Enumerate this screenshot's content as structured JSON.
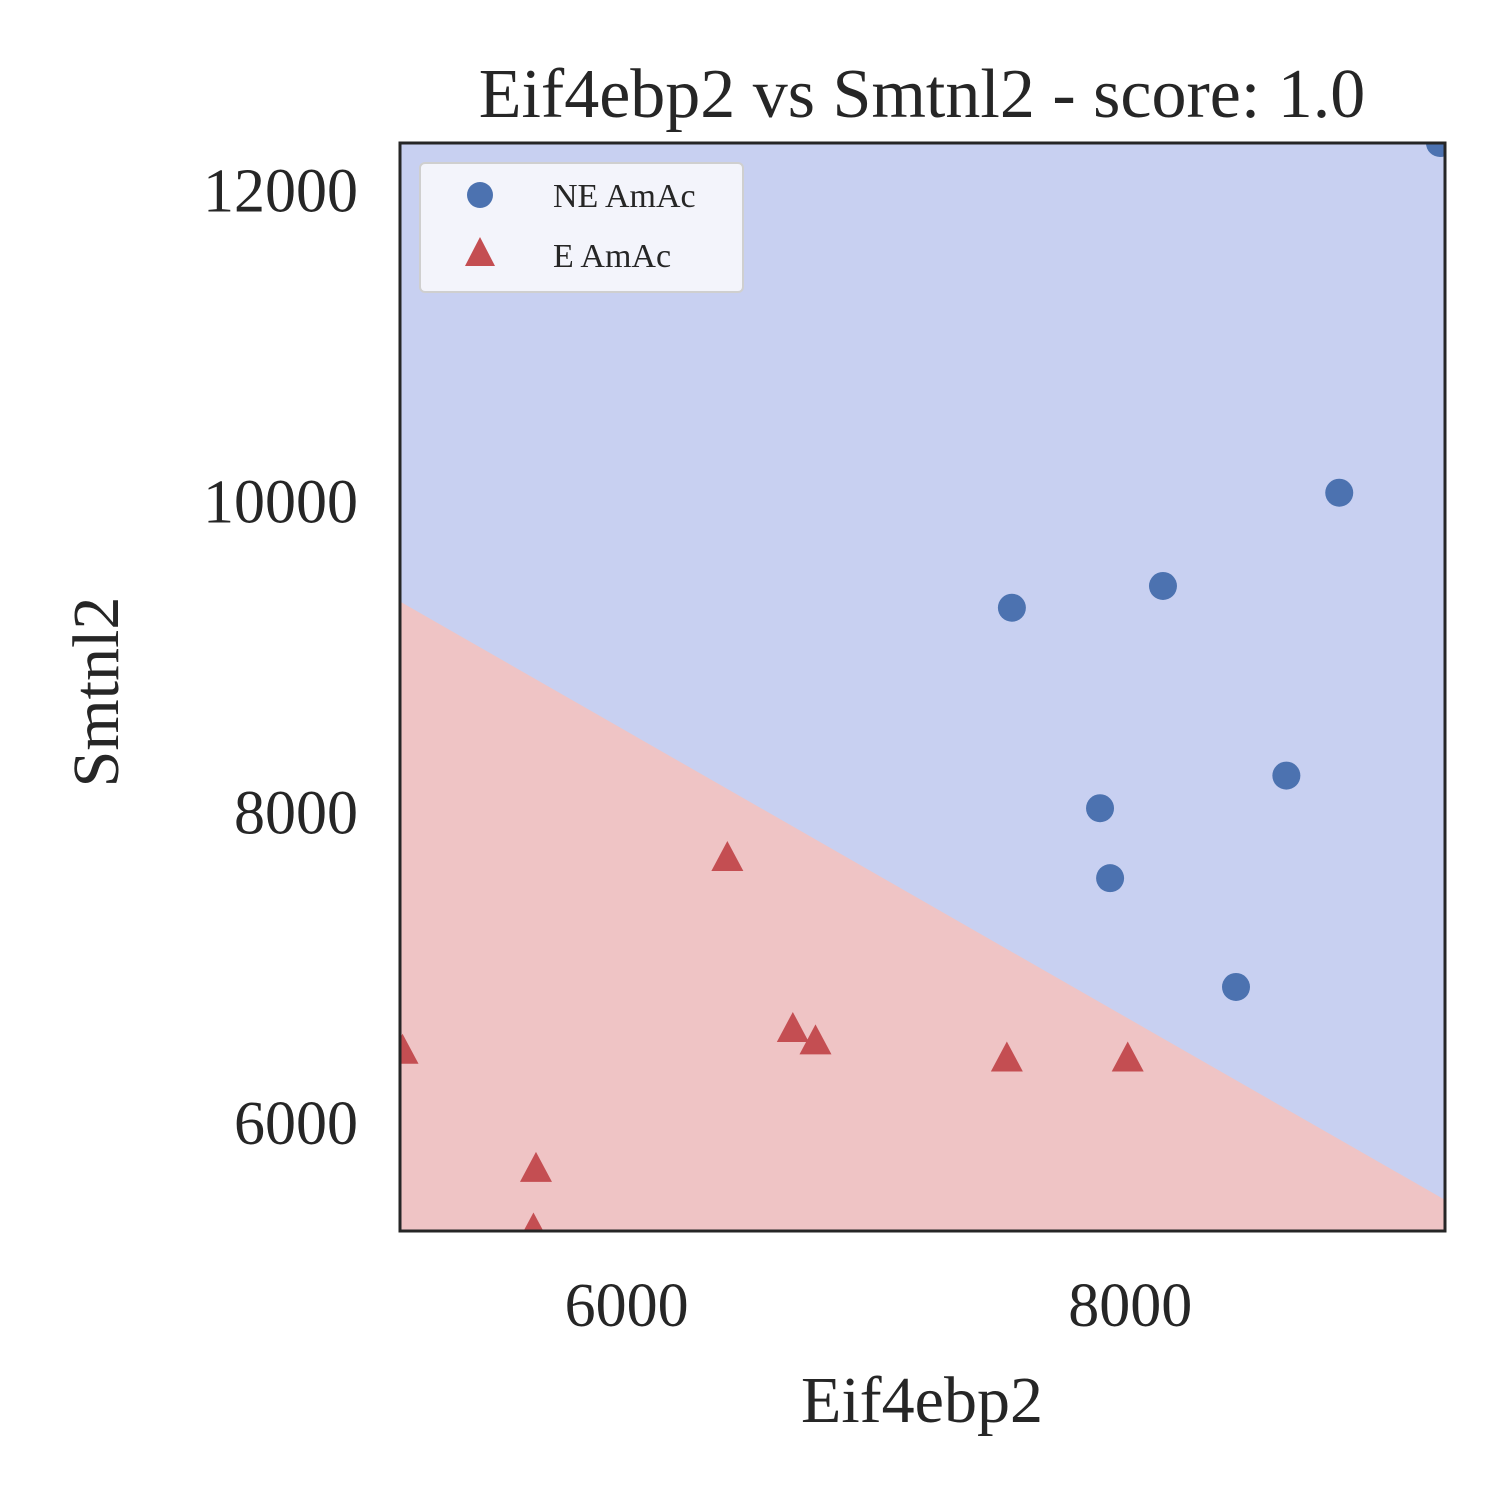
{
  "chart_data": {
    "type": "scatter",
    "title": "Eif4ebp2 vs Smtnl2 - score: 1.0",
    "xlabel": "Eif4ebp2",
    "ylabel": "Smtnl2",
    "xlim": [
      5100,
      9250
    ],
    "ylim": [
      5300,
      12300
    ],
    "x_ticks": [
      6000,
      8000
    ],
    "y_ticks": [
      6000,
      8000,
      10000,
      12000
    ],
    "grid": false,
    "legend_position": "top-left",
    "decision_boundary": {
      "type": "linear",
      "points": [
        [
          5100,
          9350
        ],
        [
          9250,
          5500
        ]
      ],
      "above_class": "NE AmAc",
      "below_class": "E AmAc"
    },
    "region_colors": {
      "NE AmAc": "#c8d0f1",
      "E AmAc": "#efc4c5"
    },
    "series": [
      {
        "name": "NE AmAc",
        "marker": "circle",
        "color": "#4c72b0",
        "x": [
          9230,
          8830,
          8620,
          8130,
          7530,
          7880,
          7920,
          8420
        ],
        "y": [
          12300,
          10050,
          8230,
          9450,
          9310,
          8020,
          7570,
          6870
        ]
      },
      {
        "name": "E AmAc",
        "marker": "triangle",
        "color": "#c44e52",
        "x": [
          5110,
          5640,
          6400,
          6660,
          6750,
          7510,
          7990,
          5630
        ],
        "y": [
          6460,
          5700,
          7700,
          6600,
          6520,
          6410,
          6410,
          5310
        ]
      }
    ]
  }
}
